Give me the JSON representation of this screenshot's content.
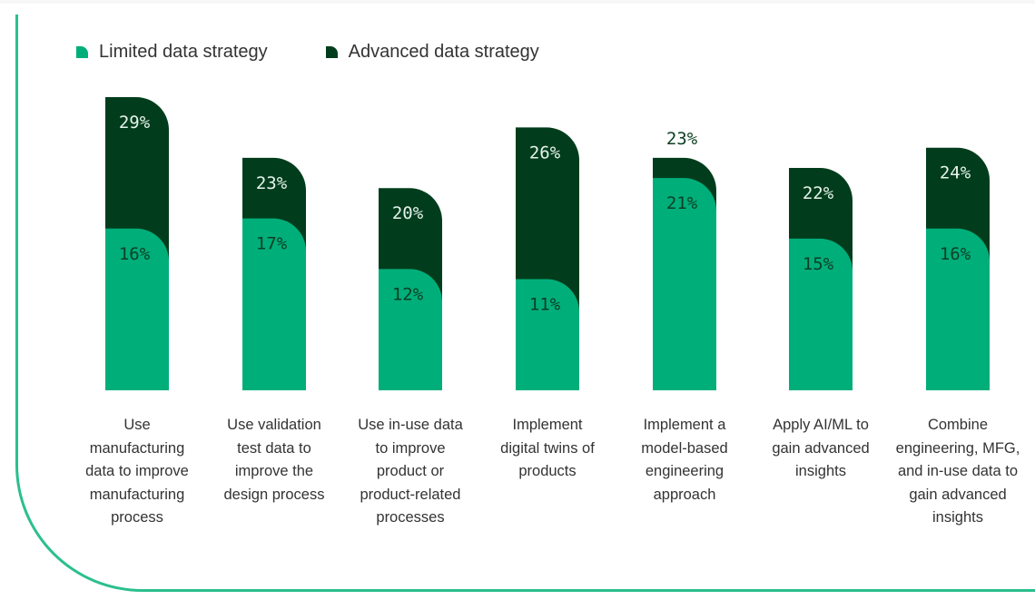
{
  "colors": {
    "limited": "#00ae7a",
    "advanced": "#013d1c",
    "frame": "#2bbf8e",
    "label_light": "#e6f3ec",
    "label_dark": "#0d3f24"
  },
  "chart_data": {
    "type": "bar",
    "mode": "overlapping",
    "legend": [
      "Limited data strategy",
      "Advanced data strategy"
    ],
    "legend_position": "top-left",
    "categories": [
      "Use manufacturing data to improve manufacturing process",
      "Use validation test data to improve the design process",
      "Use in-use data to improve product or product-related processes",
      "Implement digital twins of products",
      "Implement a model-based engineering approach",
      "Apply AI/ML to gain advanced insights",
      "Combine engineering, MFG, and in-use data to gain advanced insights"
    ],
    "category_lines": [
      [
        "Use",
        "manufacturing",
        "data to improve",
        "manufacturing",
        "process"
      ],
      [
        "Use validation",
        "test data to",
        "improve the",
        "design process"
      ],
      [
        "Use in-use data",
        "to improve",
        "product or",
        "product-related",
        "processes"
      ],
      [
        "Implement",
        "digital twins of",
        "products"
      ],
      [
        "Implement a",
        "model-based",
        "engineering",
        "approach"
      ],
      [
        "Apply AI/ML to",
        "gain advanced",
        "insights"
      ],
      [
        "Combine",
        "engineering, MFG,",
        "and in-use data to",
        "gain advanced",
        "insights"
      ]
    ],
    "series": [
      {
        "name": "Limited data strategy",
        "values": [
          16,
          17,
          12,
          11,
          21,
          15,
          16
        ],
        "labels": [
          "16%",
          "17%",
          "12%",
          "11%",
          "21%",
          "15%",
          "16%"
        ]
      },
      {
        "name": "Advanced data strategy",
        "values": [
          29,
          23,
          20,
          26,
          23,
          22,
          24
        ],
        "labels": [
          "29%",
          "23%",
          "20%",
          "26%",
          "23%",
          "22%",
          "24%"
        ]
      }
    ],
    "ylim": [
      0,
      29
    ],
    "grid": false,
    "xlabel": "",
    "ylabel": ""
  }
}
